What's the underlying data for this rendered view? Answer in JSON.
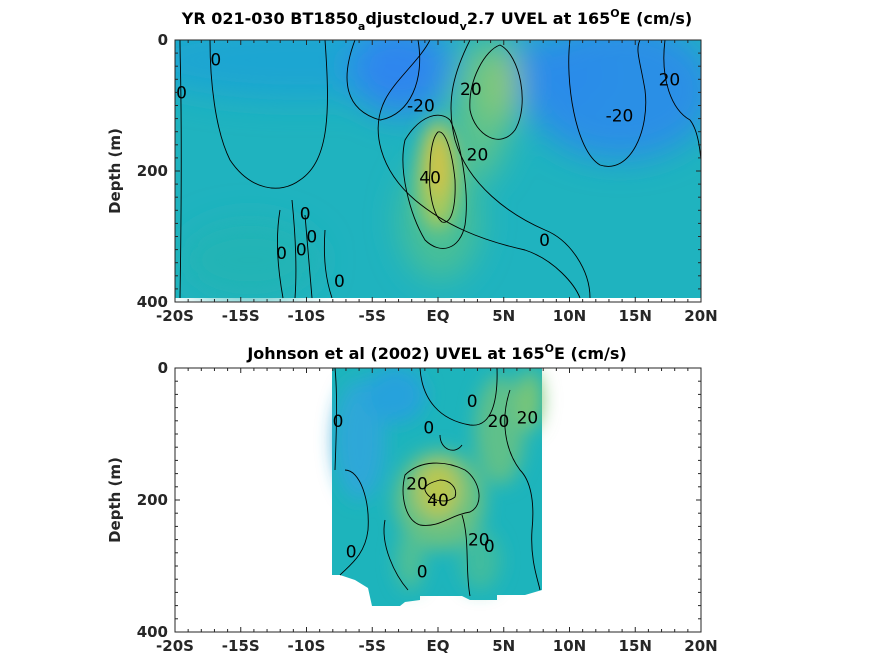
{
  "chart_data": [
    {
      "type": "heatmap",
      "title_parts": [
        "YR 021-030 BT1850",
        "a",
        "djustcloud",
        "v",
        "2.7 UVEL at 165",
        "O",
        "E (cm/s)"
      ],
      "xlabel": "",
      "ylabel": "Depth (m)",
      "xlim": [
        -20,
        20
      ],
      "ylim": [
        0,
        400
      ],
      "y_reversed": true,
      "x_ticks": [
        -20,
        -15,
        -10,
        -5,
        0,
        5,
        10,
        15,
        20
      ],
      "x_tick_labels": [
        "-20S",
        "-15S",
        "-10S",
        "-5S",
        "EQ",
        "5N",
        "10N",
        "15N",
        "20N"
      ],
      "y_ticks": [
        0,
        200,
        400
      ],
      "y_tick_labels": [
        "0",
        "200",
        "400"
      ],
      "data_extent": {
        "x": [
          -20,
          20
        ],
        "depth": [
          0,
          390
        ]
      },
      "colormap": "parula",
      "contour_levels": [
        -20,
        0,
        20,
        40
      ],
      "features": [
        {
          "kind": "core",
          "x": 0.3,
          "depth": 170,
          "value": 45
        },
        {
          "kind": "core",
          "x": 4.7,
          "depth": 70,
          "value": 25
        },
        {
          "kind": "core",
          "x": -3.5,
          "depth": 30,
          "value": -25
        },
        {
          "kind": "core",
          "x": 12.5,
          "depth": 70,
          "value": -25
        }
      ],
      "contour_labels": [
        {
          "text": "0",
          "x": -16.9,
          "depth": 30
        },
        {
          "text": "0",
          "x": -19.5,
          "depth": 80
        },
        {
          "text": "-20",
          "x": -1.3,
          "depth": 100
        },
        {
          "text": "20",
          "x": 2.5,
          "depth": 75
        },
        {
          "text": "-20",
          "x": 13.8,
          "depth": 115
        },
        {
          "text": "20",
          "x": 17.6,
          "depth": 60
        },
        {
          "text": "40",
          "x": -0.6,
          "depth": 210
        },
        {
          "text": "20",
          "x": 3.0,
          "depth": 175
        },
        {
          "text": "0",
          "x": -10.1,
          "depth": 265
        },
        {
          "text": "0",
          "x": -9.6,
          "depth": 300
        },
        {
          "text": "0",
          "x": -10.4,
          "depth": 320
        },
        {
          "text": "0",
          "x": -11.9,
          "depth": 325
        },
        {
          "text": "0",
          "x": 8.1,
          "depth": 305
        },
        {
          "text": "0",
          "x": -7.5,
          "depth": 368
        }
      ]
    },
    {
      "type": "heatmap",
      "title_parts": [
        "Johnson et al (2002) UVEL at 165",
        "O",
        "E (cm/s)"
      ],
      "xlabel": "",
      "ylabel": "Depth (m)",
      "xlim": [
        -20,
        20
      ],
      "ylim": [
        0,
        400
      ],
      "y_reversed": true,
      "x_ticks": [
        -20,
        -15,
        -10,
        -5,
        0,
        5,
        10,
        15,
        20
      ],
      "x_tick_labels": [
        "-20S",
        "-15S",
        "-10S",
        "-5S",
        "EQ",
        "5N",
        "10N",
        "15N",
        "20N"
      ],
      "y_ticks": [
        0,
        200,
        400
      ],
      "y_tick_labels": [
        "0",
        "200",
        "400"
      ],
      "data_extent": {
        "x": [
          -8,
          8
        ],
        "depth": [
          0,
          365
        ]
      },
      "colormap": "parula",
      "contour_levels": [
        0,
        20,
        40
      ],
      "features": [
        {
          "kind": "core",
          "x": -0.2,
          "depth": 190,
          "value": 42
        },
        {
          "kind": "core",
          "x": 4.5,
          "depth": 60,
          "value": 20
        },
        {
          "kind": "core",
          "x": -6.0,
          "depth": 40,
          "value": -3
        },
        {
          "kind": "core",
          "x": 6.7,
          "depth": 20,
          "value": 22
        }
      ],
      "contour_labels": [
        {
          "text": "0",
          "x": -7.6,
          "depth": 80
        },
        {
          "text": "0",
          "x": -0.7,
          "depth": 90
        },
        {
          "text": "0",
          "x": 2.6,
          "depth": 50
        },
        {
          "text": "20",
          "x": 4.6,
          "depth": 80
        },
        {
          "text": "20",
          "x": 6.8,
          "depth": 75
        },
        {
          "text": "20",
          "x": -1.6,
          "depth": 175
        },
        {
          "text": "40",
          "x": 0.0,
          "depth": 200
        },
        {
          "text": "20",
          "x": 3.1,
          "depth": 260
        },
        {
          "text": "0",
          "x": 3.9,
          "depth": 270
        },
        {
          "text": "0",
          "x": -6.6,
          "depth": 278
        },
        {
          "text": "0",
          "x": -1.2,
          "depth": 308
        }
      ]
    }
  ]
}
